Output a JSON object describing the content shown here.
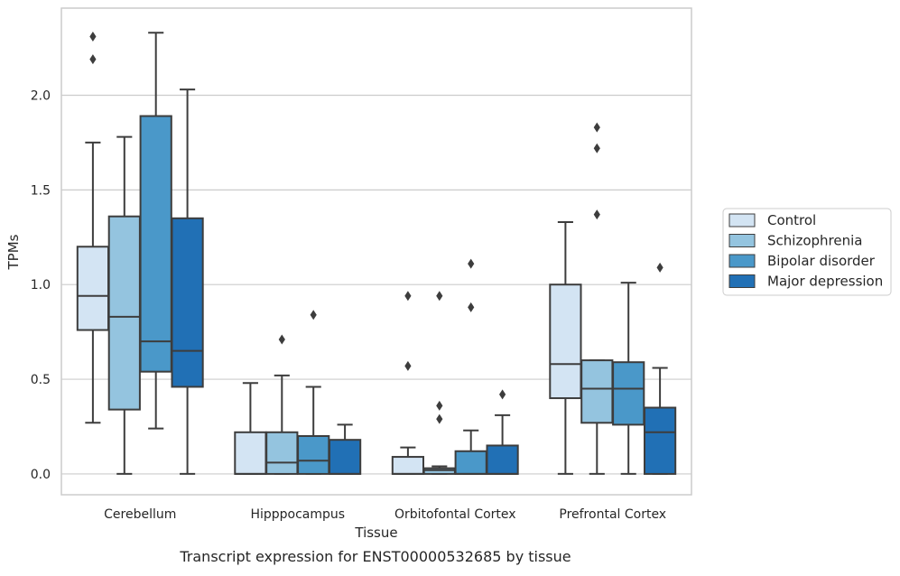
{
  "chart_data": {
    "type": "box",
    "caption": "Transcript expression for ENST00000532685 by tissue",
    "xlabel": "Tissue",
    "ylabel": "TPMs",
    "categories": [
      "Cerebellum",
      "Hipppocampus",
      "Orbitofontal Cortex",
      "Prefrontal Cortex"
    ],
    "ylim": [
      -0.11,
      2.46
    ],
    "yticks": [
      0.0,
      0.5,
      1.0,
      1.5,
      2.0
    ],
    "ytick_labels": [
      "0.0",
      "0.5",
      "1.0",
      "1.5",
      "2.0"
    ],
    "grid": "horizontal",
    "legend_position": "right",
    "series": [
      {
        "name": "Control",
        "color": "#d3e4f3",
        "boxes": [
          {
            "whisker_low": 0.27,
            "q1": 0.76,
            "median": 0.94,
            "q3": 1.2,
            "whisker_high": 1.75,
            "outliers": [
              2.19,
              2.31
            ]
          },
          {
            "whisker_low": 0.0,
            "q1": 0.0,
            "median": 0.0,
            "q3": 0.22,
            "whisker_high": 0.48,
            "outliers": []
          },
          {
            "whisker_low": 0.0,
            "q1": 0.0,
            "median": 0.0,
            "q3": 0.09,
            "whisker_high": 0.14,
            "outliers": [
              0.57,
              0.94
            ]
          },
          {
            "whisker_low": 0.0,
            "q1": 0.4,
            "median": 0.58,
            "q3": 1.0,
            "whisker_high": 1.33,
            "outliers": []
          }
        ]
      },
      {
        "name": "Schizophrenia",
        "color": "#94c4df",
        "boxes": [
          {
            "whisker_low": 0.0,
            "q1": 0.34,
            "median": 0.83,
            "q3": 1.36,
            "whisker_high": 1.78,
            "outliers": []
          },
          {
            "whisker_low": 0.0,
            "q1": 0.0,
            "median": 0.06,
            "q3": 0.22,
            "whisker_high": 0.52,
            "outliers": [
              0.71
            ]
          },
          {
            "whisker_low": 0.0,
            "q1": 0.0,
            "median": 0.02,
            "q3": 0.03,
            "whisker_high": 0.04,
            "outliers": [
              0.29,
              0.36,
              0.94
            ]
          },
          {
            "whisker_low": 0.0,
            "q1": 0.27,
            "median": 0.45,
            "q3": 0.6,
            "whisker_high": 0.6,
            "outliers": [
              1.37,
              1.72,
              1.83
            ]
          }
        ]
      },
      {
        "name": "Bipolar disorder",
        "color": "#4a98c9",
        "boxes": [
          {
            "whisker_low": 0.24,
            "q1": 0.54,
            "median": 0.7,
            "q3": 1.89,
            "whisker_high": 2.33,
            "outliers": []
          },
          {
            "whisker_low": 0.0,
            "q1": 0.0,
            "median": 0.07,
            "q3": 0.2,
            "whisker_high": 0.46,
            "outliers": [
              0.84
            ]
          },
          {
            "whisker_low": 0.0,
            "q1": 0.0,
            "median": 0.0,
            "q3": 0.12,
            "whisker_high": 0.23,
            "outliers": [
              0.88,
              1.11
            ]
          },
          {
            "whisker_low": 0.0,
            "q1": 0.26,
            "median": 0.45,
            "q3": 0.59,
            "whisker_high": 1.01,
            "outliers": []
          }
        ]
      },
      {
        "name": "Major depression",
        "color": "#2170b5",
        "boxes": [
          {
            "whisker_low": 0.0,
            "q1": 0.46,
            "median": 0.65,
            "q3": 1.35,
            "whisker_high": 2.03,
            "outliers": []
          },
          {
            "whisker_low": 0.0,
            "q1": 0.0,
            "median": 0.0,
            "q3": 0.18,
            "whisker_high": 0.26,
            "outliers": []
          },
          {
            "whisker_low": 0.0,
            "q1": 0.0,
            "median": 0.0,
            "q3": 0.15,
            "whisker_high": 0.31,
            "outliers": [
              0.42
            ]
          },
          {
            "whisker_low": 0.0,
            "q1": 0.0,
            "median": 0.22,
            "q3": 0.35,
            "whisker_high": 0.56,
            "outliers": [
              1.09
            ]
          }
        ]
      }
    ]
  }
}
